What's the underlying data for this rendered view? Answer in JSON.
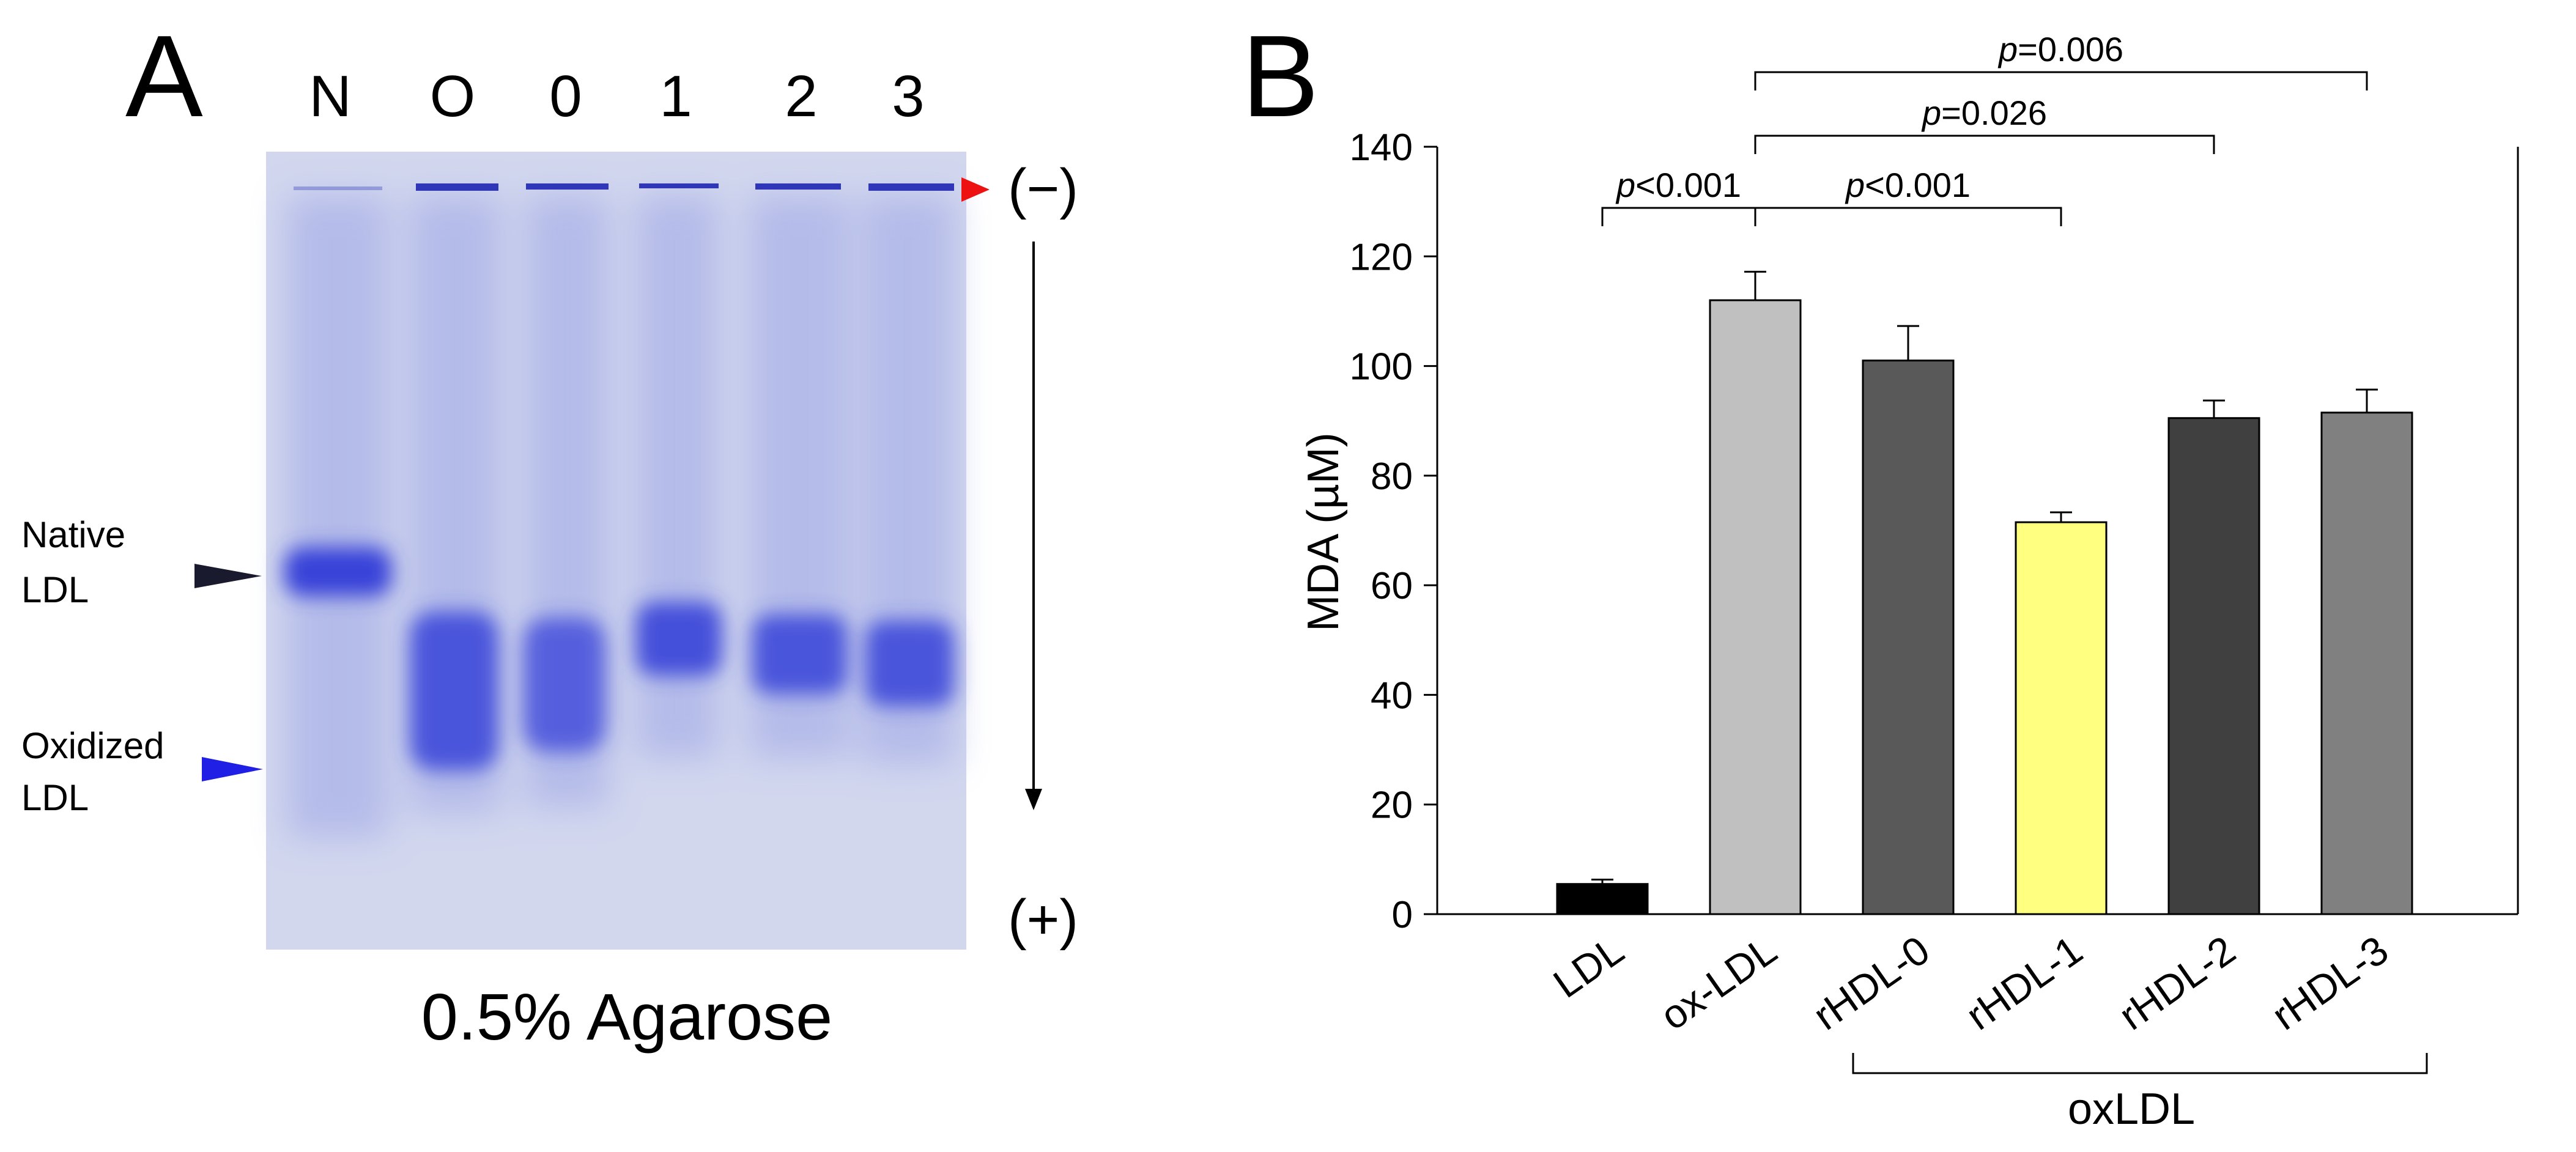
{
  "panel_a": {
    "label": "A",
    "lanes": [
      "N",
      "O",
      "0",
      "1",
      "2",
      "3"
    ],
    "native_label": [
      "Native",
      "LDL"
    ],
    "oxidized_label": [
      "Oxidized",
      "LDL"
    ],
    "minus_label": "(−)",
    "plus_label": "(+)",
    "caption": "0.5% Agarose",
    "colors": {
      "gel": "#d7dcf0",
      "band": "#3742d8",
      "native_arrow": "#1a1a2e",
      "oxidized_arrow": "#1f1fe6",
      "well_arrow": "#ee1111"
    }
  },
  "panel_b": {
    "label": "B",
    "group_label": "oxLDL"
  },
  "chart_data": {
    "type": "bar",
    "title": "",
    "xlabel": "",
    "ylabel": "MDA (µM)",
    "categories": [
      "LDL",
      "ox-LDL",
      "rHDL-0",
      "rHDL-1",
      "rHDL-2",
      "rHDL-3"
    ],
    "values": [
      5.5,
      112,
      101,
      71.5,
      90.5,
      91.5
    ],
    "errors": [
      0.8,
      5.2,
      6.3,
      1.8,
      3.2,
      4.2
    ],
    "bar_colors": [
      "#000000",
      "#c0c0c0",
      "#595959",
      "#ffff80",
      "#404040",
      "#808080"
    ],
    "ylim": [
      0,
      140
    ],
    "yticks": [
      0,
      20,
      40,
      60,
      80,
      100,
      120,
      140
    ],
    "grid": false,
    "comparisons": [
      {
        "from": "LDL",
        "to": "ox-LDL",
        "label": "p<0.001"
      },
      {
        "from": "ox-LDL",
        "to": "rHDL-1",
        "label": "p<0.001"
      },
      {
        "from": "ox-LDL",
        "to": "rHDL-2",
        "label": "p=0.026"
      },
      {
        "from": "ox-LDL",
        "to": "rHDL-3",
        "label": "p=0.006"
      }
    ]
  }
}
